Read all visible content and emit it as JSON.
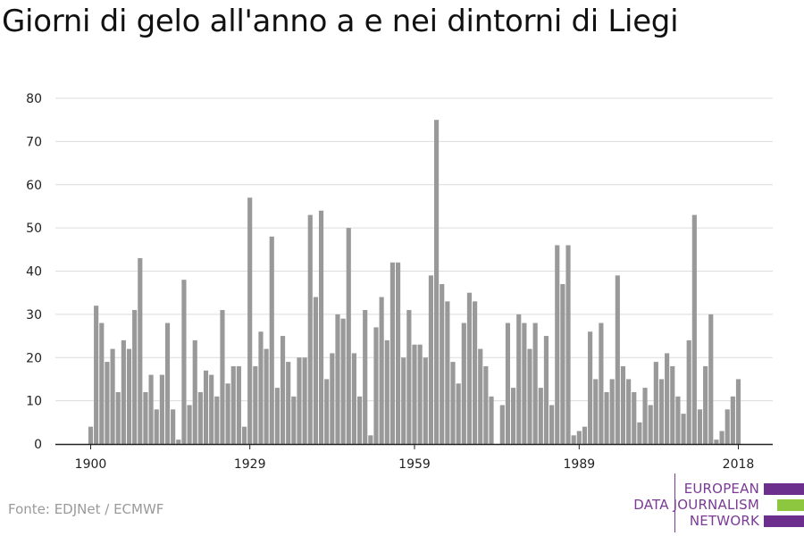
{
  "header": {
    "title": "Giorni di gelo all'anno a e nei dintorni di Liegi"
  },
  "footer": {
    "source": "Fonte: EDJNet / ECMWF"
  },
  "logo": {
    "lines": [
      "EUROPEAN",
      "DATA JOURNALISM",
      "NETWORK"
    ],
    "colors": {
      "purple": "#6d2f8e",
      "green": "#8dc63f",
      "text": "#7a3a96"
    }
  },
  "chart_data": {
    "type": "bar",
    "title": "Giorni di gelo all'anno a e nei dintorni di Liegi",
    "xlabel": "",
    "ylabel": "",
    "ylim": [
      0,
      80
    ],
    "yticks": [
      0,
      10,
      20,
      30,
      40,
      50,
      60,
      70,
      80
    ],
    "xticks": [
      1900,
      1929,
      1959,
      1989,
      2018
    ],
    "grid": true,
    "bar_color": "#999999",
    "x_start": 1900,
    "categories": [
      1900,
      1901,
      1902,
      1903,
      1904,
      1905,
      1906,
      1907,
      1908,
      1909,
      1910,
      1911,
      1912,
      1913,
      1914,
      1915,
      1916,
      1917,
      1918,
      1919,
      1920,
      1921,
      1922,
      1923,
      1924,
      1925,
      1926,
      1927,
      1928,
      1929,
      1930,
      1931,
      1932,
      1933,
      1934,
      1935,
      1936,
      1937,
      1938,
      1939,
      1940,
      1941,
      1942,
      1943,
      1944,
      1945,
      1946,
      1947,
      1948,
      1949,
      1950,
      1951,
      1952,
      1953,
      1954,
      1955,
      1956,
      1957,
      1958,
      1959,
      1960,
      1961,
      1962,
      1963,
      1964,
      1965,
      1966,
      1967,
      1968,
      1969,
      1970,
      1971,
      1972,
      1973,
      1974,
      1975,
      1976,
      1977,
      1978,
      1979,
      1980,
      1981,
      1982,
      1983,
      1984,
      1985,
      1986,
      1987,
      1988,
      1989,
      1990,
      1991,
      1992,
      1993,
      1994,
      1995,
      1996,
      1997,
      1998,
      1999,
      2000,
      2001,
      2002,
      2003,
      2004,
      2005,
      2006,
      2007,
      2008,
      2009,
      2010,
      2011,
      2012,
      2013,
      2014,
      2015,
      2016,
      2017,
      2018
    ],
    "values": [
      4,
      32,
      28,
      19,
      22,
      12,
      24,
      22,
      31,
      43,
      12,
      16,
      8,
      16,
      28,
      8,
      1,
      38,
      9,
      24,
      12,
      17,
      16,
      11,
      31,
      14,
      18,
      18,
      4,
      57,
      18,
      26,
      22,
      48,
      13,
      25,
      19,
      11,
      20,
      20,
      53,
      34,
      54,
      15,
      21,
      30,
      29,
      50,
      21,
      11,
      31,
      2,
      27,
      34,
      24,
      42,
      42,
      20,
      31,
      23,
      23,
      20,
      39,
      75,
      37,
      33,
      19,
      14,
      28,
      35,
      33,
      22,
      18,
      11,
      0,
      9,
      28,
      13,
      30,
      28,
      22,
      28,
      13,
      25,
      9,
      46,
      37,
      46,
      2,
      3,
      4,
      26,
      15,
      28,
      12,
      15,
      39,
      18,
      15,
      12,
      5,
      13,
      9,
      19,
      15,
      21,
      18,
      11,
      7,
      24,
      53,
      8,
      18,
      30,
      1,
      3,
      8,
      11,
      15
    ]
  }
}
